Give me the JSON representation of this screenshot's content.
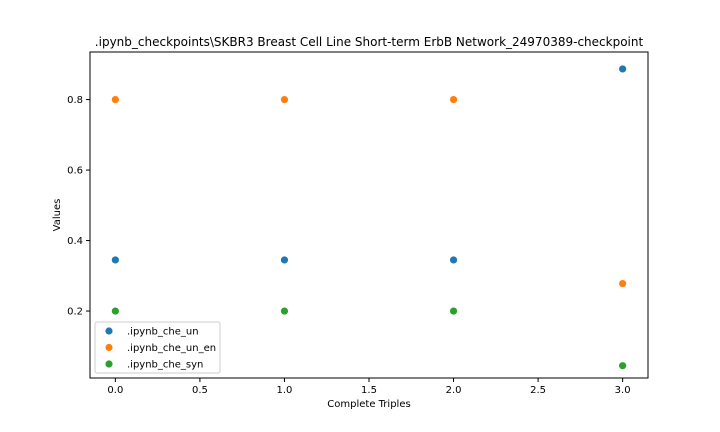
{
  "chart_data": {
    "type": "scatter",
    "title": ".ipynb_checkpoints\\SKBR3 Breast Cell Line Short-term ErbB Network_24970389-checkpoint",
    "xlabel": "Complete Triples",
    "ylabel": "Values",
    "xlim": [
      -0.15,
      3.15
    ],
    "ylim": [
      0.01,
      0.935
    ],
    "x_ticks": [
      0.0,
      0.5,
      1.0,
      1.5,
      2.0,
      2.5,
      3.0
    ],
    "x_tick_labels": [
      "0.0",
      "0.5",
      "1.0",
      "1.5",
      "2.0",
      "2.5",
      "3.0"
    ],
    "y_ticks": [
      0.2,
      0.4,
      0.6,
      0.8
    ],
    "y_tick_labels": [
      "0.2",
      "0.4",
      "0.6",
      "0.8"
    ],
    "grid": false,
    "legend_position": "lower-left",
    "x": [
      0,
      1,
      2,
      3
    ],
    "series": [
      {
        "name": ".ipynb_che_un",
        "color": "#1f77b4",
        "values": [
          0.345,
          0.345,
          0.345,
          0.887
        ]
      },
      {
        "name": ".ipynb_che_un_en",
        "color": "#ff7f0e",
        "values": [
          0.8,
          0.8,
          0.8,
          0.278
        ]
      },
      {
        "name": ".ipynb_che_syn",
        "color": "#2ca02c",
        "values": [
          0.2,
          0.2,
          0.2,
          0.045
        ]
      }
    ]
  }
}
